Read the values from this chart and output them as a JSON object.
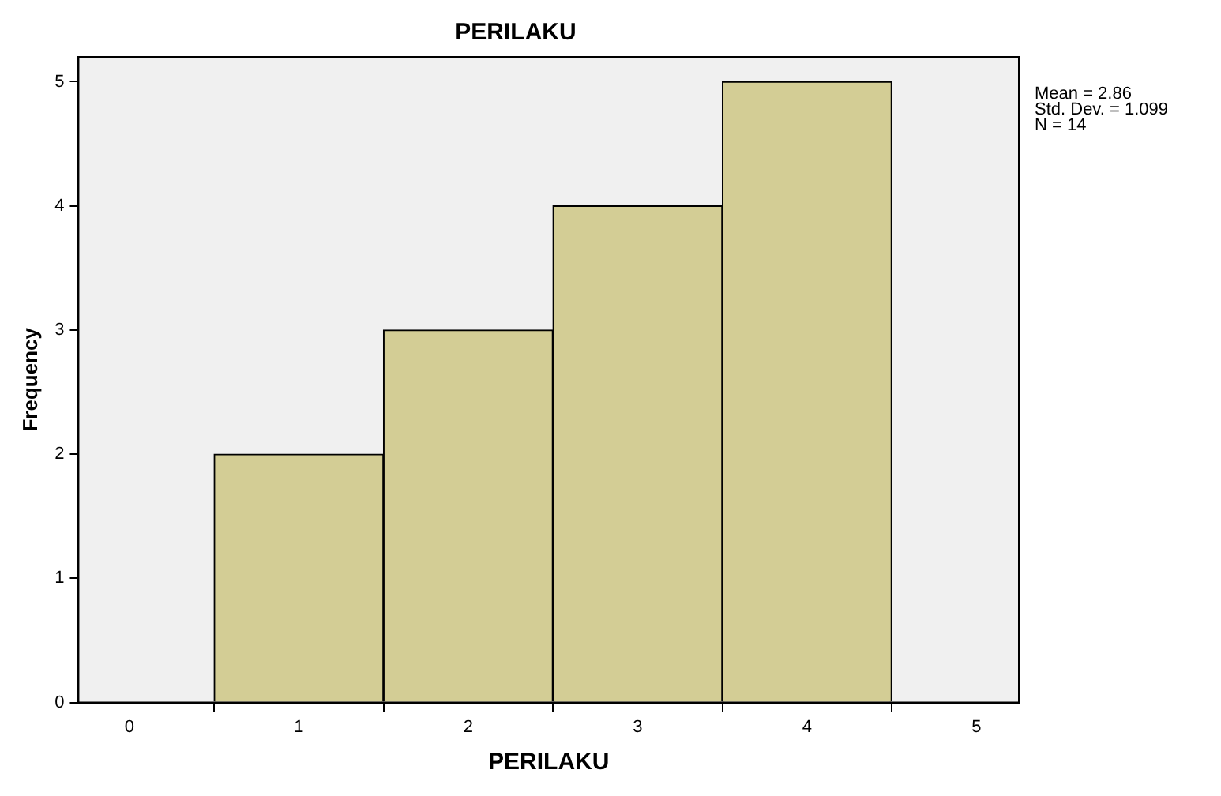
{
  "chart_data": {
    "type": "histogram",
    "title": "PERILAKU",
    "xlabel": "PERILAKU",
    "ylabel": "Frequency",
    "bins": [
      0.5,
      1.5,
      2.5,
      3.5,
      4.5
    ],
    "values": [
      2,
      3,
      4,
      5
    ],
    "color": "#d3cd95",
    "xlim": [
      -0.3,
      5.25
    ],
    "xticks": [
      0,
      1,
      2,
      3,
      4,
      5
    ],
    "ylim": [
      0,
      5.2
    ],
    "yticks": [
      0,
      1,
      2,
      3,
      4,
      5
    ],
    "grid": false,
    "legend": false,
    "annotations": [
      "Mean = 2.86",
      "Std. Dev. = 1.099",
      "N = 14"
    ]
  }
}
